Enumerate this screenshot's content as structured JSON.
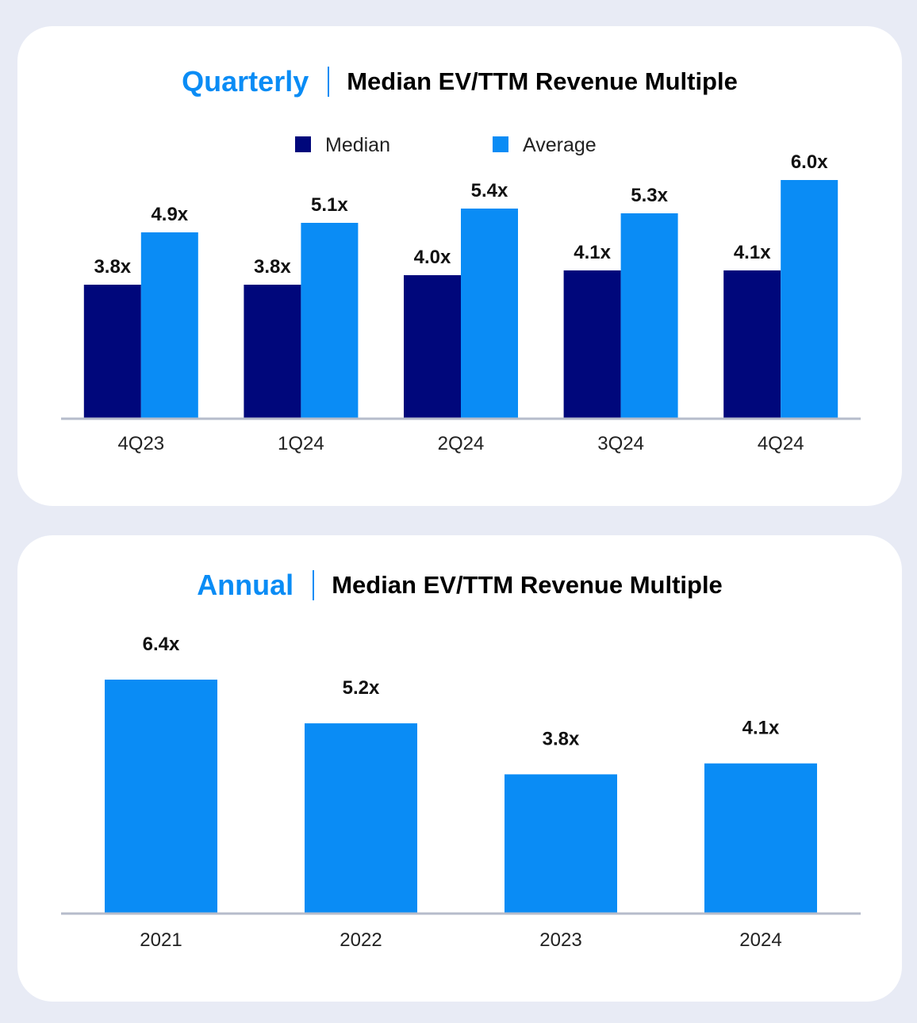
{
  "quarterly": {
    "title_accent": "Quarterly",
    "title_main": "Median EV/TTM Revenue Multiple"
  },
  "annual": {
    "title_accent": "Annual",
    "title_main": "Median EV/TTM Revenue Multiple"
  },
  "colors": {
    "median": "#00077b",
    "average": "#0a8cf5",
    "axis": "#b6bccb",
    "accent": "#0a8cf5"
  },
  "chart_data": [
    {
      "type": "bar",
      "title": "Quarterly | Median EV/TTM Revenue Multiple",
      "categories": [
        "4Q23",
        "1Q24",
        "2Q24",
        "3Q24",
        "4Q24"
      ],
      "series": [
        {
          "name": "Median",
          "values": [
            3.8,
            3.8,
            4.0,
            4.1,
            4.1
          ],
          "labels": [
            "3.8x",
            "3.8x",
            "4.0x",
            "4.1x",
            "4.1x"
          ]
        },
        {
          "name": "Average",
          "values": [
            4.9,
            5.1,
            5.4,
            5.3,
            6.0
          ],
          "labels": [
            "4.9x",
            "5.1x",
            "5.4x",
            "5.3x",
            "6.0x"
          ]
        }
      ],
      "ylim": [
        1.0,
        6.0
      ],
      "grid": false,
      "legend": "top-center"
    },
    {
      "type": "bar",
      "title": "Annual | Median EV/TTM Revenue Multiple",
      "categories": [
        "2021",
        "2022",
        "2023",
        "2024"
      ],
      "values": [
        6.4,
        5.2,
        3.8,
        4.1
      ],
      "labels": [
        "6.4x",
        "5.2x",
        "3.8x",
        "4.1x"
      ],
      "ylim": [
        0,
        6.4
      ],
      "grid": false,
      "legend": "none"
    }
  ]
}
